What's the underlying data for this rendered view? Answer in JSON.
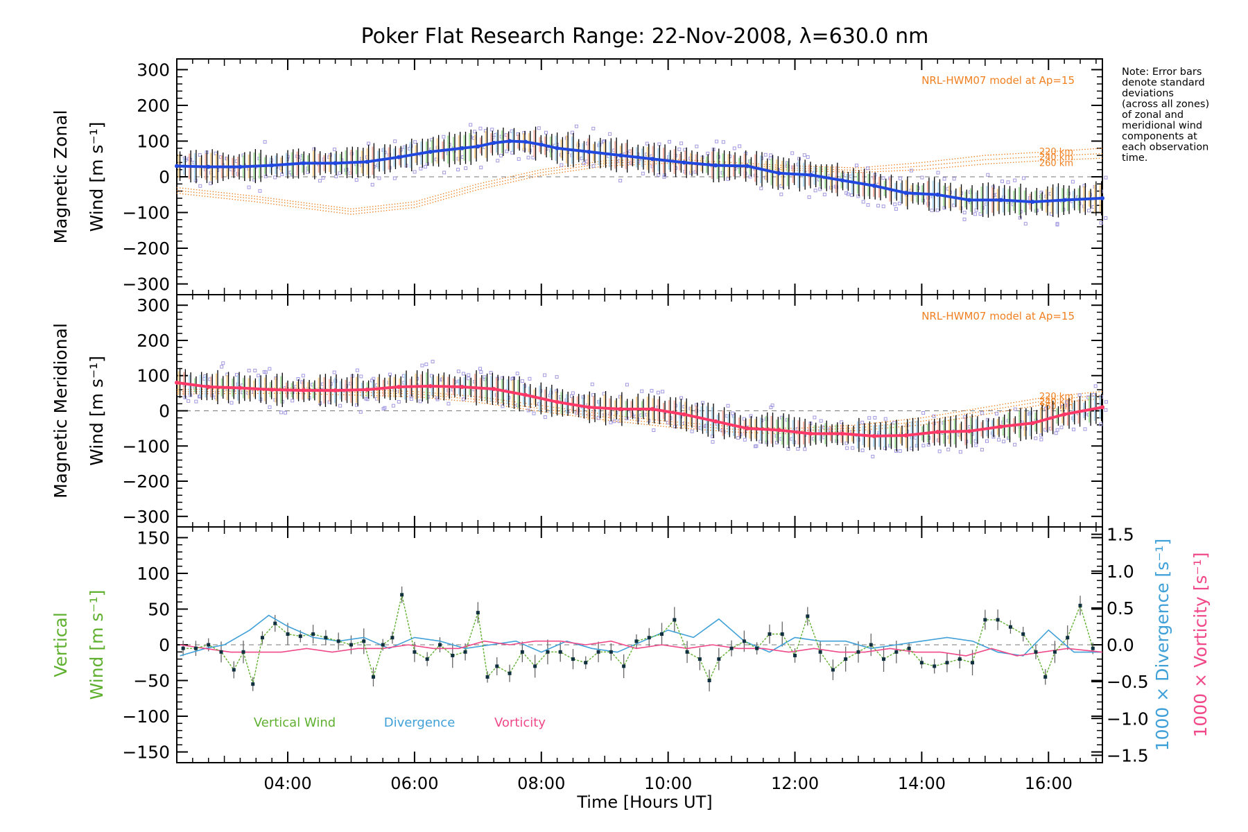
{
  "title": "Poker Flat Research Range: 22-Nov-2008, λ=630.0 nm",
  "note_lines": [
    "Note: Error bars",
    "denote standard",
    "deviations",
    "(across all zones)",
    "of zonal and",
    "meridional wind",
    "components at",
    "each observation",
    "time."
  ],
  "x_axis": {
    "label": "Time [Hours UT]",
    "ticks": [
      "04:00",
      "06:00",
      "08:00",
      "10:00",
      "12:00",
      "14:00",
      "16:00"
    ],
    "range_hours": [
      2.25,
      16.85
    ]
  },
  "colors": {
    "zonal": "#2048e0",
    "zonal_light": "#40a0e0",
    "meridional": "#ff3868",
    "model": "#f08020",
    "zone_marker": "#a098e0",
    "vertical": "#60b030",
    "divergence": "#40a0d8",
    "vorticity": "#f04888",
    "error_bar": "#000000"
  },
  "panels": {
    "zonal": {
      "ylabel_line1": "Magnetic Zonal",
      "ylabel_line2": "Wind [m s⁻¹]",
      "yticks": [
        "300",
        "200",
        "100",
        "0",
        "−100",
        "−200",
        "−300"
      ],
      "model_label": "NRL-HWM07 model at Ap=15",
      "altitude_labels": [
        "220 km",
        "240 km",
        "260 km"
      ]
    },
    "meridional": {
      "ylabel_line1": "Magnetic Meridional",
      "ylabel_line2": "Wind [m s⁻¹]",
      "yticks": [
        "300",
        "200",
        "100",
        "0",
        "−100",
        "−200",
        "−300"
      ],
      "model_label": "NRL-HWM07 model at Ap=15",
      "altitude_labels": [
        "220 km",
        "240 km",
        "260 km"
      ]
    },
    "vertical": {
      "ylabel_line1": "Vertical",
      "ylabel_line2": "Wind [m s⁻¹]",
      "yticks": [
        "150",
        "100",
        "50",
        "0",
        "−50",
        "−100",
        "−150"
      ],
      "right_ticks": [
        "1.5",
        "1.0",
        "0.5",
        "0.0",
        "−0.5",
        "−1.0",
        "−1.5"
      ],
      "right_label_divergence": "1000 × Divergence [s⁻¹]",
      "right_label_vorticity": "1000 × Vorticity [s⁻¹]",
      "legend": [
        "Vertical Wind",
        "Divergence",
        "Vorticity"
      ]
    }
  },
  "chart_data": [
    {
      "type": "line",
      "title": "Magnetic Zonal Wind",
      "ylabel": "Magnetic Zonal Wind [m s⁻¹]",
      "xlabel": "Time [Hours UT]",
      "ylim": [
        -330,
        330
      ],
      "x_unit": "hours UT",
      "series": [
        {
          "name": "Magnetic Zonal Wind",
          "x": [
            2.25,
            2.75,
            3.25,
            3.75,
            4.25,
            4.75,
            5.25,
            5.75,
            6.25,
            6.75,
            7.0,
            7.25,
            7.5,
            7.75,
            8.0,
            8.25,
            8.75,
            9.25,
            9.75,
            10.25,
            10.75,
            11.25,
            11.75,
            12.25,
            12.75,
            13.25,
            13.75,
            14.25,
            14.75,
            15.25,
            15.75,
            16.25,
            16.85
          ],
          "values": [
            30,
            28,
            28,
            32,
            38,
            38,
            42,
            55,
            70,
            80,
            85,
            95,
            100,
            98,
            90,
            80,
            70,
            60,
            50,
            40,
            32,
            30,
            10,
            5,
            -10,
            -25,
            -45,
            -50,
            -65,
            -65,
            -70,
            -65,
            -60
          ]
        },
        {
          "name": "220 km",
          "x": [
            2.25,
            3.5,
            5.0,
            6.0,
            7.0,
            7.5,
            8.0,
            9.0,
            10.0,
            11.0,
            12.0,
            13.0,
            14.0,
            15.0,
            16.0,
            16.85
          ],
          "values": [
            -30,
            -55,
            -90,
            -70,
            -20,
            0,
            20,
            45,
            50,
            40,
            30,
            25,
            40,
            60,
            70,
            80
          ]
        },
        {
          "name": "240 km",
          "x": [
            2.25,
            3.5,
            5.0,
            6.0,
            7.0,
            7.5,
            8.0,
            9.0,
            10.0,
            11.0,
            12.0,
            13.0,
            14.0,
            15.0,
            16.0,
            16.85
          ],
          "values": [
            -38,
            -62,
            -97,
            -78,
            -28,
            -8,
            12,
            38,
            44,
            34,
            24,
            18,
            30,
            48,
            58,
            65
          ]
        },
        {
          "name": "260 km",
          "x": [
            2.25,
            3.5,
            5.0,
            6.0,
            7.0,
            7.5,
            8.0,
            9.0,
            10.0,
            11.0,
            12.0,
            13.0,
            14.0,
            15.0,
            16.0,
            16.85
          ],
          "values": [
            -46,
            -70,
            -105,
            -86,
            -36,
            -16,
            4,
            30,
            38,
            28,
            18,
            12,
            20,
            36,
            46,
            52
          ]
        }
      ]
    },
    {
      "type": "line",
      "title": "Magnetic Meridional Wind",
      "ylabel": "Magnetic Meridional Wind [m s⁻¹]",
      "xlabel": "Time [Hours UT]",
      "ylim": [
        -330,
        330
      ],
      "x_unit": "hours UT",
      "series": [
        {
          "name": "Magnetic Meridional Wind",
          "x": [
            2.25,
            2.75,
            3.25,
            3.75,
            4.25,
            4.75,
            5.25,
            5.75,
            6.25,
            6.75,
            7.25,
            7.75,
            8.25,
            8.75,
            9.25,
            9.75,
            10.25,
            10.75,
            11.25,
            11.75,
            12.25,
            12.75,
            13.25,
            13.75,
            14.25,
            14.75,
            15.25,
            15.75,
            16.25,
            16.85
          ],
          "values": [
            80,
            68,
            65,
            60,
            58,
            58,
            60,
            68,
            70,
            68,
            62,
            45,
            25,
            10,
            5,
            5,
            -10,
            -30,
            -50,
            -55,
            -65,
            -65,
            -72,
            -70,
            -60,
            -58,
            -45,
            -35,
            -10,
            10
          ]
        },
        {
          "name": "220 km",
          "x": [
            2.25,
            4.0,
            6.0,
            7.0,
            8.0,
            9.0,
            10.0,
            11.0,
            12.0,
            13.0,
            14.0,
            15.0,
            16.0,
            16.85
          ],
          "values": [
            60,
            65,
            55,
            40,
            15,
            -10,
            -30,
            -45,
            -50,
            -40,
            -20,
            10,
            40,
            55
          ]
        },
        {
          "name": "240 km",
          "x": [
            2.25,
            4.0,
            6.0,
            7.0,
            8.0,
            9.0,
            10.0,
            11.0,
            12.0,
            13.0,
            14.0,
            15.0,
            16.0,
            16.85
          ],
          "values": [
            54,
            58,
            48,
            32,
            6,
            -18,
            -38,
            -52,
            -58,
            -48,
            -30,
            0,
            30,
            45
          ]
        },
        {
          "name": "260 km",
          "x": [
            2.25,
            4.0,
            6.0,
            7.0,
            8.0,
            9.0,
            10.0,
            11.0,
            12.0,
            13.0,
            14.0,
            15.0,
            16.0,
            16.85
          ],
          "values": [
            48,
            50,
            40,
            24,
            -2,
            -26,
            -46,
            -60,
            -66,
            -56,
            -40,
            -10,
            20,
            35
          ]
        }
      ]
    },
    {
      "type": "line",
      "title": "Vertical Wind, Divergence and Vorticity",
      "ylabel": "Vertical Wind [m s⁻¹]",
      "xlabel": "Time [Hours UT]",
      "ylim": [
        -165,
        165
      ],
      "y2lim": [
        -1.6,
        1.6
      ],
      "x_unit": "hours UT",
      "series": [
        {
          "name": "Vertical Wind",
          "x": [
            2.35,
            2.55,
            2.75,
            2.95,
            3.15,
            3.3,
            3.45,
            3.6,
            3.8,
            4.0,
            4.2,
            4.4,
            4.6,
            4.8,
            5.0,
            5.2,
            5.35,
            5.5,
            5.65,
            5.8,
            6.0,
            6.2,
            6.4,
            6.6,
            6.8,
            7.0,
            7.15,
            7.3,
            7.5,
            7.7,
            7.9,
            8.1,
            8.3,
            8.5,
            8.7,
            8.9,
            9.1,
            9.3,
            9.5,
            9.7,
            9.9,
            10.1,
            10.3,
            10.5,
            10.65,
            10.8,
            11.0,
            11.2,
            11.4,
            11.6,
            11.8,
            12.0,
            12.2,
            12.4,
            12.6,
            12.8,
            13.0,
            13.2,
            13.4,
            13.6,
            13.8,
            14.0,
            14.2,
            14.4,
            14.6,
            14.8,
            15.0,
            15.2,
            15.4,
            15.6,
            15.8,
            15.95,
            16.1,
            16.3,
            16.5,
            16.7
          ],
          "values": [
            -5,
            -5,
            0,
            -10,
            -35,
            -10,
            -55,
            10,
            30,
            15,
            12,
            15,
            10,
            5,
            0,
            5,
            -45,
            0,
            10,
            70,
            -10,
            -20,
            0,
            -15,
            -10,
            45,
            -45,
            -30,
            -40,
            -10,
            -30,
            -10,
            -10,
            -20,
            -25,
            -10,
            -10,
            -30,
            5,
            10,
            15,
            35,
            -10,
            -20,
            -50,
            -20,
            -5,
            5,
            -5,
            15,
            15,
            -15,
            40,
            -10,
            -35,
            -20,
            -10,
            0,
            -20,
            -10,
            -5,
            -25,
            -30,
            -25,
            -20,
            -25,
            35,
            35,
            25,
            15,
            -10,
            -45,
            -10,
            10,
            55,
            -5
          ],
          "axis": "left"
        },
        {
          "name": "Divergence",
          "x": [
            2.3,
            2.7,
            3.0,
            3.4,
            3.7,
            4.0,
            4.4,
            4.8,
            5.2,
            5.6,
            6.0,
            6.4,
            6.8,
            7.2,
            7.6,
            8.0,
            8.4,
            8.8,
            9.2,
            9.6,
            10.0,
            10.4,
            10.8,
            11.2,
            11.6,
            12.0,
            12.4,
            12.8,
            13.2,
            13.6,
            14.0,
            14.4,
            14.8,
            15.2,
            15.6,
            16.0,
            16.4,
            16.85
          ],
          "values": [
            -0.15,
            -0.05,
            0.0,
            0.2,
            0.4,
            0.25,
            0.1,
            0.05,
            0.1,
            -0.05,
            0.1,
            0.05,
            -0.05,
            0.0,
            0.05,
            -0.1,
            0.05,
            -0.05,
            -0.1,
            0.05,
            0.2,
            0.1,
            0.35,
            0.05,
            -0.1,
            0.1,
            0.05,
            0.05,
            -0.05,
            0.0,
            0.05,
            0.1,
            0.05,
            -0.1,
            -0.15,
            0.2,
            -0.1,
            -0.1
          ],
          "axis": "right"
        },
        {
          "name": "Vorticity",
          "x": [
            2.3,
            2.7,
            3.1,
            3.5,
            3.9,
            4.3,
            4.7,
            5.1,
            5.5,
            5.9,
            6.3,
            6.7,
            7.1,
            7.5,
            7.9,
            8.3,
            8.7,
            9.1,
            9.5,
            9.9,
            10.3,
            10.7,
            11.1,
            11.5,
            11.9,
            12.3,
            12.7,
            13.1,
            13.5,
            13.9,
            14.3,
            14.7,
            15.1,
            15.5,
            15.9,
            16.3,
            16.85
          ],
          "values": [
            0.0,
            -0.05,
            -0.1,
            -0.1,
            -0.1,
            -0.05,
            -0.1,
            -0.05,
            -0.05,
            0.0,
            -0.05,
            -0.05,
            0.05,
            0.0,
            0.05,
            0.05,
            0.0,
            0.05,
            -0.05,
            0.0,
            -0.05,
            0.0,
            -0.05,
            -0.05,
            -0.1,
            -0.05,
            -0.1,
            -0.1,
            -0.05,
            -0.1,
            -0.1,
            -0.15,
            -0.05,
            -0.15,
            -0.1,
            -0.05,
            -0.1
          ],
          "axis": "right"
        }
      ]
    }
  ]
}
